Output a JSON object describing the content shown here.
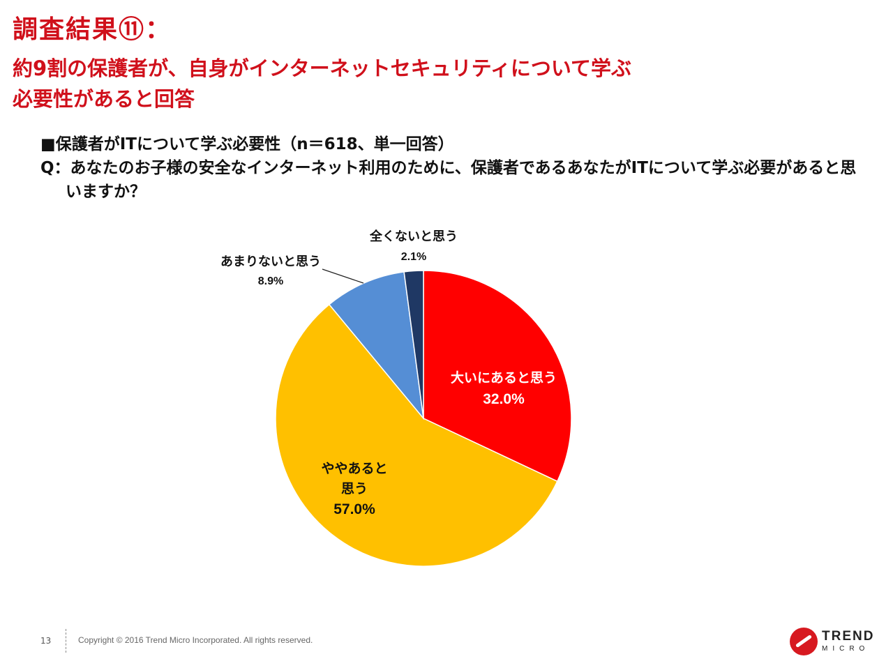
{
  "header": {
    "title": "調査結果⑪：",
    "subtitle_line1": "約9割の保護者が、自身がインターネットセキュリティについて学ぶ",
    "subtitle_line2": "必要性があると回答"
  },
  "question": {
    "heading": "■保護者がITについて学ぶ必要性（n＝618、単一回答）",
    "text": "Q：あなたのお子様の安全なインターネット利用のために、保護者であるあなたがITについて学ぶ必要があると思いますか？"
  },
  "chart_data": {
    "type": "pie",
    "unit": "%",
    "slices": [
      {
        "label": "大いにあると思う",
        "value": 32.0,
        "value_label": "32.0%",
        "color": "#ff0000",
        "label_color": "#ffffff"
      },
      {
        "label_lines": [
          "ややあると",
          "思う"
        ],
        "value": 57.0,
        "value_label": "57.0%",
        "color": "#ffc000",
        "label_color": "#111111"
      },
      {
        "label": "あまりないと思う",
        "value": 8.9,
        "value_label": "8.9%",
        "color": "#558ed5",
        "label_color": "#111111"
      },
      {
        "label": "全くないと思う",
        "value": 2.1,
        "value_label": "2.1%",
        "color": "#1f3864",
        "label_color": "#111111"
      }
    ]
  },
  "footer": {
    "page_number": "13",
    "copyright": "Copyright © 2016 Trend Micro Incorporated. All rights reserved.",
    "logo_text": "TREND",
    "logo_sub": "MICRO"
  }
}
